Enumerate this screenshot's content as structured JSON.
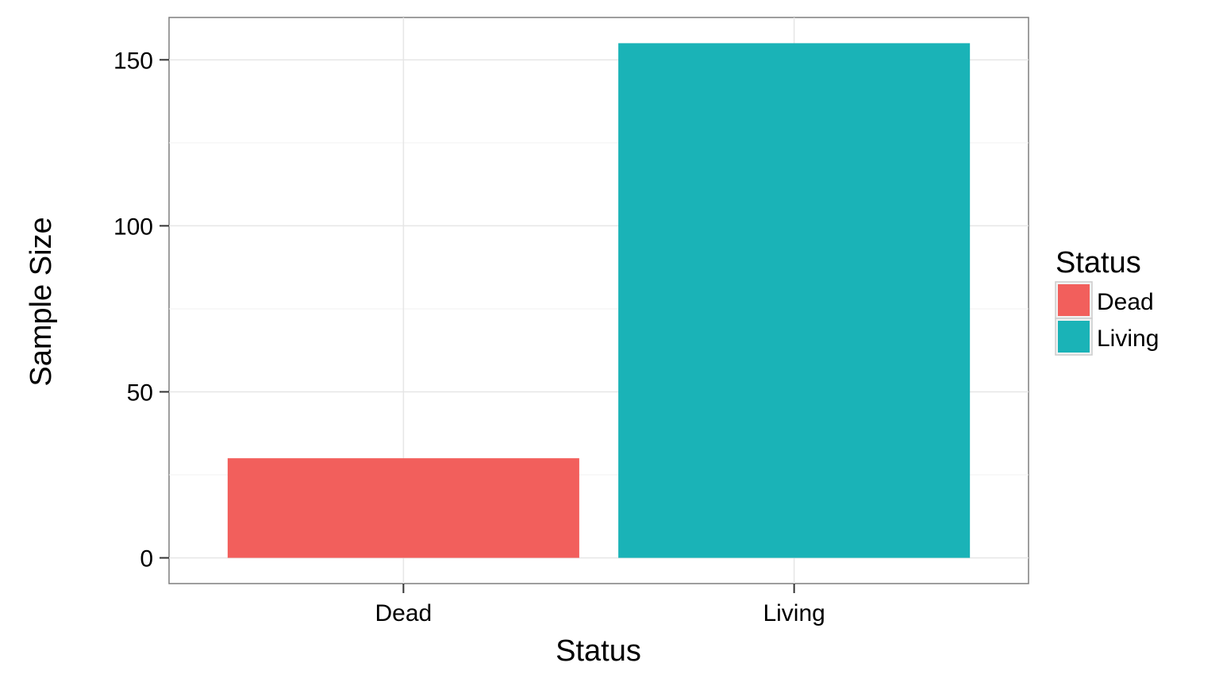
{
  "chart_data": {
    "type": "bar",
    "categories": [
      "Dead",
      "Living"
    ],
    "values": [
      30,
      155
    ],
    "colors": [
      "#F25F5C",
      "#1AB3B7"
    ],
    "xlabel": "Status",
    "ylabel": "Sample Size",
    "ylim": [
      -7.75,
      162.75
    ],
    "yticks": [
      0,
      50,
      100,
      150
    ],
    "ytick_labels": [
      "0",
      "50",
      "100",
      "150"
    ],
    "grid": true,
    "legend": {
      "title": "Status",
      "placement": "right",
      "items": [
        {
          "label": "Dead",
          "color": "#F25F5C"
        },
        {
          "label": "Living",
          "color": "#1AB3B7"
        }
      ]
    }
  }
}
